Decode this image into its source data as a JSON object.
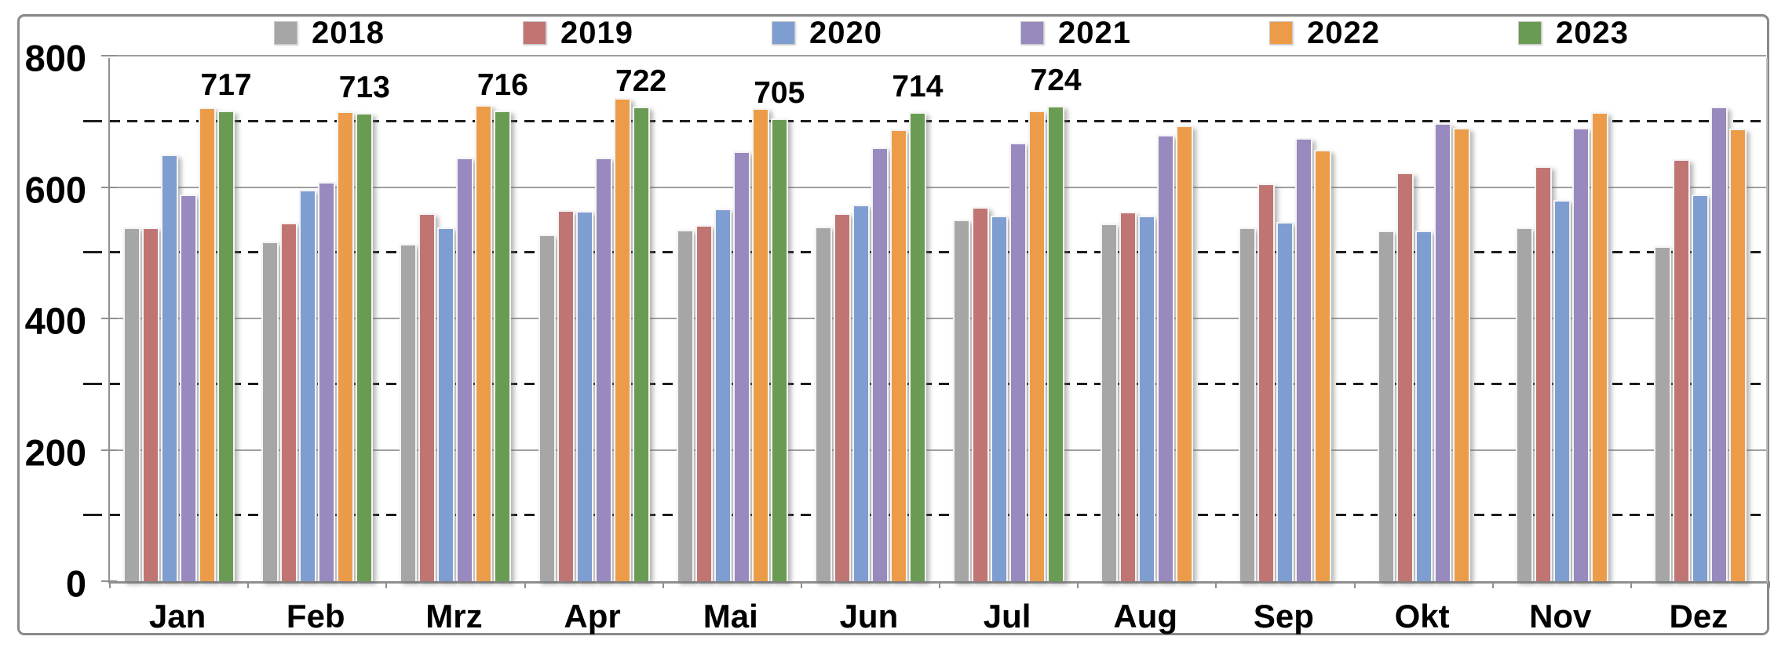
{
  "chart_data": {
    "type": "bar",
    "title": "",
    "xlabel": "",
    "ylabel": "",
    "ylim": [
      0,
      800
    ],
    "yticks": [
      0,
      200,
      400,
      600,
      800
    ],
    "minor_gridlines": [
      100,
      300,
      500,
      700
    ],
    "grid": {
      "major": "solid",
      "minor": "dashed"
    },
    "legend_position": "top",
    "categories": [
      "Jan",
      "Feb",
      "Mrz",
      "Apr",
      "Mai",
      "Jun",
      "Jul",
      "Aug",
      "Sep",
      "Okt",
      "Nov",
      "Dez"
    ],
    "series": [
      {
        "name": "2018",
        "color": "#A6A6A6",
        "show_labels": false,
        "values": [
          538,
          517,
          514,
          528,
          535,
          540,
          551,
          544,
          538,
          534,
          538,
          510
        ]
      },
      {
        "name": "2019",
        "color": "#C07573",
        "show_labels": false,
        "values": [
          539,
          546,
          560,
          565,
          542,
          560,
          569,
          562,
          605,
          622,
          632,
          642
        ]
      },
      {
        "name": "2020",
        "color": "#7E9DD1",
        "show_labels": false,
        "values": [
          650,
          596,
          539,
          564,
          567,
          573,
          556,
          557,
          547,
          534,
          580,
          589
        ]
      },
      {
        "name": "2021",
        "color": "#9889BF",
        "show_labels": false,
        "values": [
          589,
          608,
          645,
          645,
          654,
          660,
          667,
          679,
          675,
          697,
          690,
          722
        ]
      },
      {
        "name": "2022",
        "color": "#EC9C49",
        "show_labels": false,
        "values": [
          721,
          715,
          725,
          736,
          720,
          688,
          716,
          694,
          657,
          690,
          714,
          689
        ]
      },
      {
        "name": "2023",
        "color": "#699C52",
        "show_labels": true,
        "values": [
          717,
          713,
          716,
          722,
          705,
          714,
          724,
          null,
          null,
          null,
          null,
          null
        ]
      }
    ],
    "data_labels": {
      "series": "2023",
      "values": [
        717,
        713,
        716,
        722,
        705,
        714,
        724
      ]
    }
  },
  "axis": {
    "y_tick_labels": [
      "800",
      "600",
      "400",
      "200",
      "0"
    ]
  },
  "colors": {
    "frame": "#8a8a8a",
    "axis": "#8f8f8f",
    "gridline_major": "#9f9f9f",
    "gridline_minor": "#1c1c1c"
  }
}
